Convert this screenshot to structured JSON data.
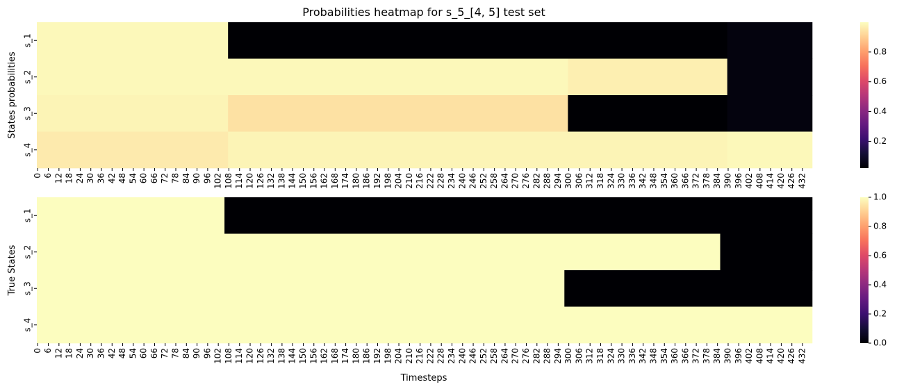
{
  "chart_data": [
    {
      "type": "heatmap",
      "title": "Probabilities heatmap for s_5_[4, 5] test set",
      "xlabel": "",
      "ylabel": "States probabilities",
      "rows": [
        "s_1",
        "s_2",
        "s_3",
        "s_4"
      ],
      "x_tick_start": 0,
      "x_tick_step": 6,
      "x_tick_count": 73,
      "n_timesteps": 438,
      "colormap": "magma",
      "colorbar": {
        "vmin": 0.02,
        "vmax": 1.0,
        "ticks": [
          0.2,
          0.4,
          0.6,
          0.8
        ]
      },
      "segments": [
        [
          {
            "from": 0,
            "to": 108,
            "value": 0.99
          },
          {
            "from": 108,
            "to": 390,
            "value": 0.0
          },
          {
            "from": 390,
            "to": 438,
            "value": 0.04
          }
        ],
        [
          {
            "from": 0,
            "to": 108,
            "value": 0.99
          },
          {
            "from": 108,
            "to": 300,
            "value": 0.99
          },
          {
            "from": 300,
            "to": 390,
            "value": 0.97
          },
          {
            "from": 390,
            "to": 438,
            "value": 0.04
          }
        ],
        [
          {
            "from": 0,
            "to": 108,
            "value": 0.98
          },
          {
            "from": 108,
            "to": 300,
            "value": 0.94
          },
          {
            "from": 300,
            "to": 390,
            "value": 0.0
          },
          {
            "from": 390,
            "to": 438,
            "value": 0.04
          }
        ],
        [
          {
            "from": 0,
            "to": 108,
            "value": 0.96
          },
          {
            "from": 108,
            "to": 390,
            "value": 0.98
          },
          {
            "from": 390,
            "to": 438,
            "value": 0.99
          }
        ]
      ]
    },
    {
      "type": "heatmap",
      "title": "",
      "xlabel": "Timesteps",
      "ylabel": "True States",
      "rows": [
        "s_1",
        "s_2",
        "s_3",
        "s_4"
      ],
      "x_tick_start": 0,
      "x_tick_step": 6,
      "x_tick_count": 73,
      "n_timesteps": 438,
      "colormap": "magma",
      "colorbar": {
        "vmin": 0.0,
        "vmax": 1.0,
        "ticks": [
          0.0,
          0.2,
          0.4,
          0.6,
          0.8,
          1.0
        ]
      },
      "segments": [
        [
          {
            "from": 0,
            "to": 106,
            "value": 1.0
          },
          {
            "from": 106,
            "to": 438,
            "value": 0.0
          }
        ],
        [
          {
            "from": 0,
            "to": 386,
            "value": 1.0
          },
          {
            "from": 386,
            "to": 438,
            "value": 0.0
          }
        ],
        [
          {
            "from": 0,
            "to": 298,
            "value": 1.0
          },
          {
            "from": 298,
            "to": 438,
            "value": 0.0
          }
        ],
        [
          {
            "from": 0,
            "to": 438,
            "value": 1.0
          }
        ]
      ]
    }
  ]
}
